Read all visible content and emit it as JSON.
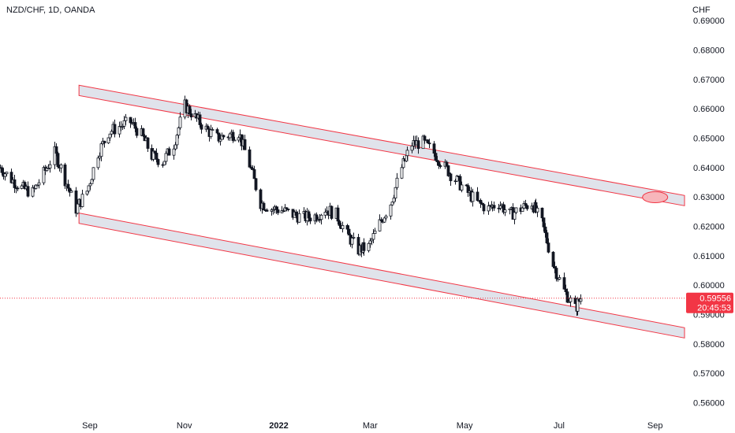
{
  "chart_data": {
    "type": "candlestick",
    "title": "NZD/CHF, 1D, OANDA",
    "currency_label": "CHF",
    "y_axis": {
      "ylim": [
        0.5545,
        0.697
      ],
      "ticks": [
        "0.69000",
        "0.68000",
        "0.67000",
        "0.66000",
        "0.65000",
        "0.64000",
        "0.63000",
        "0.62000",
        "0.61000",
        "0.60000",
        "0.59000",
        "0.58000",
        "0.57000",
        "0.56000"
      ],
      "tick_values": [
        0.69,
        0.68,
        0.67,
        0.66,
        0.65,
        0.64,
        0.63,
        0.62,
        0.61,
        0.6,
        0.59,
        0.58,
        0.57,
        0.56
      ]
    },
    "x_axis": {
      "start_date": "2021-07-05",
      "end_date": "2022-09-20",
      "labels": [
        {
          "text": "Sep",
          "date": "2021-09-01",
          "bold": false
        },
        {
          "text": "Nov",
          "date": "2021-11-01",
          "bold": false
        },
        {
          "text": "2022",
          "date": "2022-01-01",
          "bold": true
        },
        {
          "text": "Mar",
          "date": "2022-03-01",
          "bold": false
        },
        {
          "text": "May",
          "date": "2022-05-01",
          "bold": false
        },
        {
          "text": "Jul",
          "date": "2022-07-01",
          "bold": false
        },
        {
          "text": "Sep",
          "date": "2022-09-01",
          "bold": false
        }
      ]
    },
    "series": [
      {
        "type": "close-path",
        "points": [
          [
            "2021-07-05",
            0.64
          ],
          [
            "2021-07-12",
            0.636
          ],
          [
            "2021-07-19",
            0.633
          ],
          [
            "2021-07-26",
            0.6315
          ],
          [
            "2021-08-02",
            0.638
          ],
          [
            "2021-08-09",
            0.645
          ],
          [
            "2021-08-16",
            0.636
          ],
          [
            "2021-08-23",
            0.626
          ],
          [
            "2021-08-30",
            0.632
          ],
          [
            "2021-09-06",
            0.645
          ],
          [
            "2021-09-13",
            0.652
          ],
          [
            "2021-09-20",
            0.654
          ],
          [
            "2021-09-27",
            0.6555
          ],
          [
            "2021-10-04",
            0.651
          ],
          [
            "2021-10-11",
            0.644
          ],
          [
            "2021-10-18",
            0.642
          ],
          [
            "2021-10-25",
            0.648
          ],
          [
            "2021-11-01",
            0.661
          ],
          [
            "2021-11-08",
            0.657
          ],
          [
            "2021-11-15",
            0.653
          ],
          [
            "2021-11-22",
            0.65
          ],
          [
            "2021-11-29",
            0.651
          ],
          [
            "2021-12-06",
            0.652
          ],
          [
            "2021-12-13",
            0.641
          ],
          [
            "2021-12-20",
            0.628
          ],
          [
            "2021-12-27",
            0.626
          ],
          [
            "2022-01-03",
            0.6255
          ],
          [
            "2022-01-10",
            0.624
          ],
          [
            "2022-01-17",
            0.623
          ],
          [
            "2022-01-24",
            0.6235
          ],
          [
            "2022-01-31",
            0.626
          ],
          [
            "2022-02-07",
            0.624
          ],
          [
            "2022-02-14",
            0.617
          ],
          [
            "2022-02-21",
            0.612
          ],
          [
            "2022-02-28",
            0.613
          ],
          [
            "2022-03-07",
            0.621
          ],
          [
            "2022-03-14",
            0.628
          ],
          [
            "2022-03-21",
            0.64
          ],
          [
            "2022-03-28",
            0.648
          ],
          [
            "2022-04-04",
            0.6485
          ],
          [
            "2022-04-11",
            0.645
          ],
          [
            "2022-04-18",
            0.64
          ],
          [
            "2022-04-25",
            0.636
          ],
          [
            "2022-05-02",
            0.632
          ],
          [
            "2022-05-09",
            0.628
          ],
          [
            "2022-05-16",
            0.626
          ],
          [
            "2022-05-23",
            0.628
          ],
          [
            "2022-05-30",
            0.624
          ],
          [
            "2022-06-06",
            0.626
          ],
          [
            "2022-06-13",
            0.628
          ],
          [
            "2022-06-20",
            0.621
          ],
          [
            "2022-06-27",
            0.607
          ],
          [
            "2022-07-04",
            0.598
          ],
          [
            "2022-07-11",
            0.592
          ],
          [
            "2022-07-15",
            0.5956
          ]
        ]
      }
    ],
    "channels": [
      {
        "name": "upper",
        "start": [
          "2021-08-25",
          0.668
        ],
        "end": [
          "2022-09-20",
          0.6305
        ],
        "thickness": 0.0035,
        "color": "#f23645"
      },
      {
        "name": "lower",
        "start": [
          "2021-08-25",
          0.6245
        ],
        "end": [
          "2022-09-20",
          0.5855
        ],
        "thickness": 0.0035,
        "color": "#f23645"
      }
    ],
    "ellipse": {
      "date": "2022-09-01",
      "value": 0.6299,
      "color": "#f23645"
    },
    "current_price": {
      "value": 0.59556,
      "label": "0.59556",
      "countdown": "20:45:53",
      "color": "#f23645"
    },
    "colors": {
      "candle": "#131722",
      "channel_fill": "#e0e3eb",
      "channel_border": "#f23645",
      "axis_text": "#131722"
    },
    "grid": false
  }
}
